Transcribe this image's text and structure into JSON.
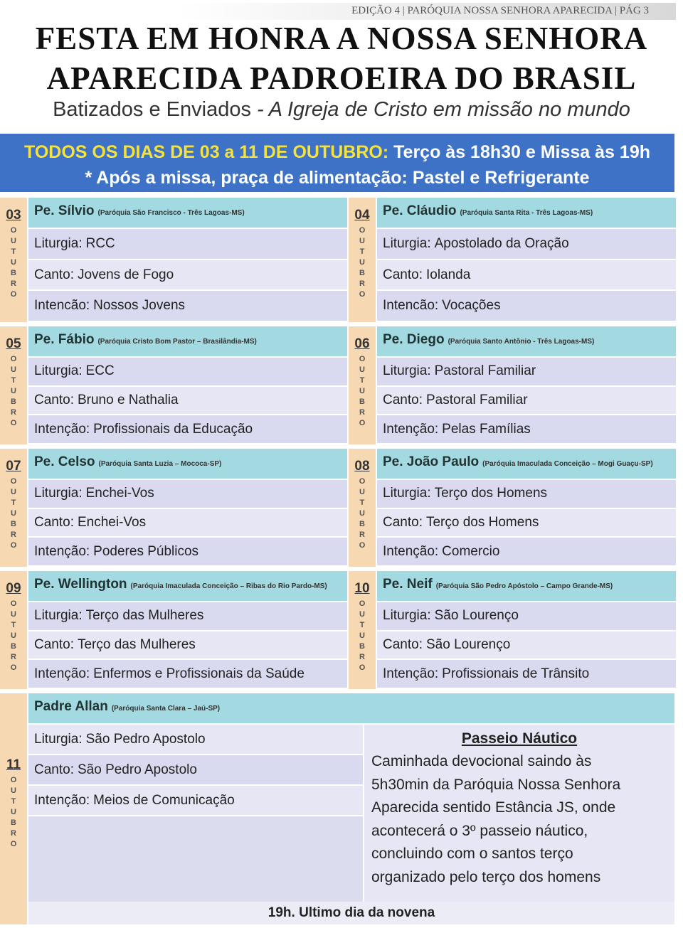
{
  "header": {
    "edition": "EDIÇÃO 4 | PARÓQUIA NOSSA SENHORA APARECIDA | PÁG 3",
    "title": [
      "FESTA EM HONRA A NOSSA SENHORA",
      "APARECIDA PADROEIRA DO BRASIL"
    ],
    "subtitle": {
      "plain": "Batizados e Enviados",
      "italic": "- A Igreja de Cristo em missão no mundo"
    }
  },
  "banner": {
    "highlight": "TODOS OS DIAS DE 03 a 11 DE OUTUBRO:",
    "schedule": "Terço às 18h30 e Missa às 19h",
    "note": "* Após a missa, praça de alimentação: Pastel e Refrigerante"
  },
  "days": [
    {
      "day": "03",
      "month": "OUTUBRO",
      "priest": "Pe. Sílvio",
      "parish": "(Paróquia São Francisco - Três Lagoas-MS)",
      "rows": [
        {
          "label": "Liturgia:",
          "value": "RCC"
        },
        {
          "label": "Canto:",
          "value": "Jovens de Fogo"
        },
        {
          "label": "Intencão:",
          "value": "Nossos Jovens"
        }
      ]
    },
    {
      "day": "04",
      "month": "OUTUBRO",
      "priest": "Pe. Cláudio",
      "parish": "(Paróquia Santa Rita - Três Lagoas-MS)",
      "rows": [
        {
          "label": "Liturgia:",
          "value": "Apostolado da Oração"
        },
        {
          "label": "Canto:",
          "value": "Iolanda"
        },
        {
          "label": "Intencão:",
          "value": "Vocações"
        }
      ]
    },
    {
      "day": "05",
      "month": "OUTUBRO",
      "priest": "Pe. Fábio",
      "parish": "(Paróquia Cristo Bom Pastor – Brasilândia-MS)",
      "rows": [
        {
          "label": "Liturgia:",
          "value": "ECC"
        },
        {
          "label": "Canto:",
          "value": "Bruno e Nathalia"
        },
        {
          "label": "Intenção:",
          "value": "Profissionais da Educação"
        }
      ]
    },
    {
      "day": "06",
      "month": "OUTUBRO",
      "priest": "Pe. Diego",
      "parish": "(Paróquia Santo Antônio - Três Lagoas-MS)",
      "rows": [
        {
          "label": "Liturgia:",
          "value": "Pastoral Familiar"
        },
        {
          "label": "Canto:",
          "value": "Pastoral Familiar"
        },
        {
          "label": "Intenção:",
          "value": "Pelas Famílias"
        }
      ]
    },
    {
      "day": "07",
      "month": "OUTUBRO",
      "priest": "Pe. Celso",
      "parish": "(Paróquia Santa Luzia – Mococa-SP)",
      "rows": [
        {
          "label": "Liturgia:",
          "value": "Enchei-Vos"
        },
        {
          "label": "Canto:",
          "value": "Enchei-Vos"
        },
        {
          "label": "Intenção:",
          "value": "Poderes Públicos"
        }
      ]
    },
    {
      "day": "08",
      "month": "OUTUBRO",
      "priest": "Pe. João Paulo",
      "parish": "(Paróquia Imaculada Conceição – Mogi Guaçu-SP)",
      "rows": [
        {
          "label": "Liturgia:",
          "value": "Terço dos Homens"
        },
        {
          "label": "Canto:",
          "value": "Terço dos Homens"
        },
        {
          "label": "Intenção:",
          "value": "Comercio"
        }
      ]
    },
    {
      "day": "09",
      "month": "OUTUBRO",
      "priest": "Pe. Wellington",
      "parish": "(Paróquia Imaculada Conceição – Ribas do Rio Pardo-MS)",
      "rows": [
        {
          "label": "Liturgia:",
          "value": "Terço das Mulheres"
        },
        {
          "label": "Canto:",
          "value": "Terço das Mulheres"
        },
        {
          "label": "Intenção:",
          "value": "Enfermos e Profissionais da Saúde"
        }
      ]
    },
    {
      "day": "10",
      "month": "OUTUBRO",
      "priest": "Pe. Neif",
      "parish": "(Paróquia São Pedro Apóstolo – Campo Grande-MS)",
      "rows": [
        {
          "label": "Liturgia:",
          "value": "São Lourenço"
        },
        {
          "label": "Canto:",
          "value": "São Lourenço"
        },
        {
          "label": "Intenção:",
          "value": "Profissionais de Trânsito"
        }
      ]
    }
  ],
  "last_day": {
    "day": "11",
    "month": "OUTUBRO",
    "priest": "Padre Allan",
    "parish": "(Paróquia Santa Clara – Jaú-SP)",
    "rows": [
      {
        "label": "Liturgia:",
        "value": "São Pedro Apostolo"
      },
      {
        "label": "Canto:",
        "value": "São Pedro Apostolo"
      },
      {
        "label": "Intenção:",
        "value": "Meios de Comunicação"
      }
    ],
    "box": {
      "title": "Passeio Náutico",
      "lines": [
        "Caminhada devocional saindo às",
        "5h30min da Paróquia Nossa Senhora",
        "Aparecida sentido Estância JS, onde",
        "acontecerá o 3º passeio náutico,",
        "concluindo com o santos terço",
        "organizado pelo terço dos homens"
      ]
    },
    "footer": "19h. Ultimo dia da novena"
  }
}
